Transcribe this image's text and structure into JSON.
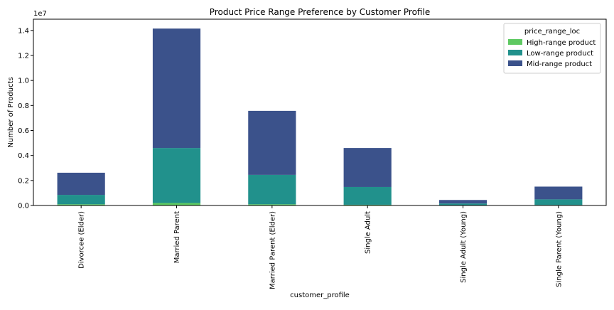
{
  "chart_data": {
    "type": "bar",
    "stacked": true,
    "title": "Product Price Range Preference by Customer Profile",
    "xlabel": "customer_profile",
    "ylabel": "Number of Products",
    "y_offset_label": "1e7",
    "ylim": [
      0,
      1.49
    ],
    "yticks": [
      0.0,
      0.2,
      0.4,
      0.6,
      0.8,
      1.0,
      1.2,
      1.4
    ],
    "ytick_labels": [
      "0.0",
      "0.2",
      "0.4",
      "0.6",
      "0.8",
      "1.0",
      "1.2",
      "1.4"
    ],
    "categories": [
      "Divorcee (Elder)",
      "Married Parent",
      "Married Parent (Elder)",
      "Single Adult",
      "Single Adult (Young)",
      "Single Parent (Young)"
    ],
    "series": [
      {
        "name": "High-range product",
        "color": "#5ec962",
        "values": [
          0.01,
          0.02,
          0.01,
          0.006,
          0.001,
          0.004
        ]
      },
      {
        "name": "Low-range product",
        "color": "#21918c",
        "values": [
          0.075,
          0.44,
          0.235,
          0.142,
          0.015,
          0.045
        ]
      },
      {
        "name": "Mid-range product",
        "color": "#3b528b",
        "values": [
          0.177,
          0.955,
          0.512,
          0.312,
          0.028,
          0.102
        ]
      }
    ],
    "legend": {
      "title": "price_range_loc",
      "placement": "top-right"
    },
    "grid": false
  }
}
